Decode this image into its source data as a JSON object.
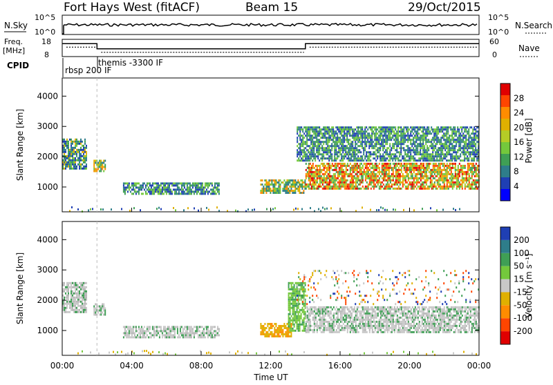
{
  "header": {
    "station": "Fort Hays West (fitACF)",
    "beam": "Beam 15",
    "date": "29/Oct/2015"
  },
  "top_panel": {
    "left_label": "N.Sky",
    "left_ticks": [
      "10^5",
      "10^0"
    ],
    "right_ticks": [
      "10^5",
      "10^0"
    ],
    "right_label": "N.Search"
  },
  "freq_panel": {
    "left_label_line1": "Freq.",
    "left_label_line2": "[MHz]",
    "left_ticks": [
      "18",
      "8"
    ],
    "right_ticks": [
      "60",
      "0"
    ],
    "right_label": "Nave",
    "cpid_label": "CPID",
    "cpid_entries": [
      {
        "name": "rbsp 200 IF",
        "start_hour": 0.0
      },
      {
        "name": "themis -3300 IF",
        "start_hour": 2.0
      }
    ],
    "frequency_steps": [
      {
        "from_hour": 0.0,
        "to_hour": 2.0,
        "mhz": 15.5
      },
      {
        "from_hour": 2.0,
        "to_hour": 14.0,
        "mhz": 12.5
      },
      {
        "from_hour": 14.0,
        "to_hour": 24.0,
        "mhz": 15.5
      }
    ]
  },
  "chart_data": [
    {
      "type": "heatmap",
      "name": "power",
      "ylabel": "Slant Range [km]",
      "yticks": [
        "1000",
        "2000",
        "3000",
        "4000"
      ],
      "ylim": [
        180,
        4600
      ],
      "xlim": [
        0,
        24
      ],
      "colorbar_label": "Power [dB]",
      "colorbar_ticks": [
        "4",
        "8",
        "12",
        "16",
        "20",
        "24",
        "28"
      ],
      "colorbar_colors": [
        "#0000ff",
        "#1f3fb4",
        "#2e7d8a",
        "#3f9f55",
        "#74c83c",
        "#b5cc26",
        "#e0b000",
        "#ff8c00",
        "#ff4500",
        "#e00000"
      ],
      "echo_regions": [
        {
          "from_hour": 0.0,
          "to_hour": 1.4,
          "range_km": [
            1600,
            2600
          ],
          "value": "mixed"
        },
        {
          "from_hour": 1.8,
          "to_hour": 2.5,
          "range_km": [
            1550,
            1900
          ],
          "value": "mid"
        },
        {
          "from_hour": 3.5,
          "to_hour": 9.0,
          "range_km": [
            750,
            1150
          ],
          "value": "low"
        },
        {
          "from_hour": 11.4,
          "to_hour": 14.0,
          "range_km": [
            800,
            1250
          ],
          "value": "mid"
        },
        {
          "from_hour": 14.0,
          "to_hour": 24.0,
          "range_km": [
            950,
            1800
          ],
          "value": "high"
        },
        {
          "from_hour": 13.5,
          "to_hour": 24.0,
          "range_km": [
            1900,
            3000
          ],
          "value": "low"
        }
      ]
    },
    {
      "type": "heatmap",
      "name": "velocity",
      "ylabel": "Slant Range [km]",
      "yticks": [
        "1000",
        "2000",
        "3000",
        "4000"
      ],
      "ylim": [
        180,
        4600
      ],
      "xlim": [
        0,
        24
      ],
      "xticks": [
        "00:00",
        "04:00",
        "08:00",
        "12:00",
        "16:00",
        "20:00",
        "00:00"
      ],
      "xlabel": "Time UT",
      "colorbar_label": "Velocity [m s⁻¹]",
      "colorbar_ticks": [
        "200",
        "100",
        "50",
        "15",
        "-15",
        "-50",
        "-100",
        "-200"
      ],
      "colorbar_colors": [
        "#1f3fb4",
        "#2e7d8a",
        "#3f9f55",
        "#74c83c",
        "#c8c8c8",
        "#e0b000",
        "#ff8c00",
        "#ff4500",
        "#e00000"
      ],
      "echo_regions": [
        {
          "from_hour": 0.0,
          "to_hour": 1.4,
          "range_km": [
            1600,
            2600
          ],
          "value": "ground"
        },
        {
          "from_hour": 1.8,
          "to_hour": 2.5,
          "range_km": [
            1550,
            1900
          ],
          "value": "ground"
        },
        {
          "from_hour": 3.5,
          "to_hour": 9.0,
          "range_km": [
            750,
            1150
          ],
          "value": "ground"
        },
        {
          "from_hour": 11.4,
          "to_hour": 13.2,
          "range_km": [
            800,
            1250
          ],
          "value": "negative"
        },
        {
          "from_hour": 13.0,
          "to_hour": 14.0,
          "range_km": [
            1000,
            2600
          ],
          "value": "positive"
        },
        {
          "from_hour": 14.0,
          "to_hour": 24.0,
          "range_km": [
            950,
            1800
          ],
          "value": "ground"
        },
        {
          "from_hour": 13.5,
          "to_hour": 24.0,
          "range_km": [
            1900,
            3000
          ],
          "value": "scatter"
        }
      ]
    }
  ]
}
